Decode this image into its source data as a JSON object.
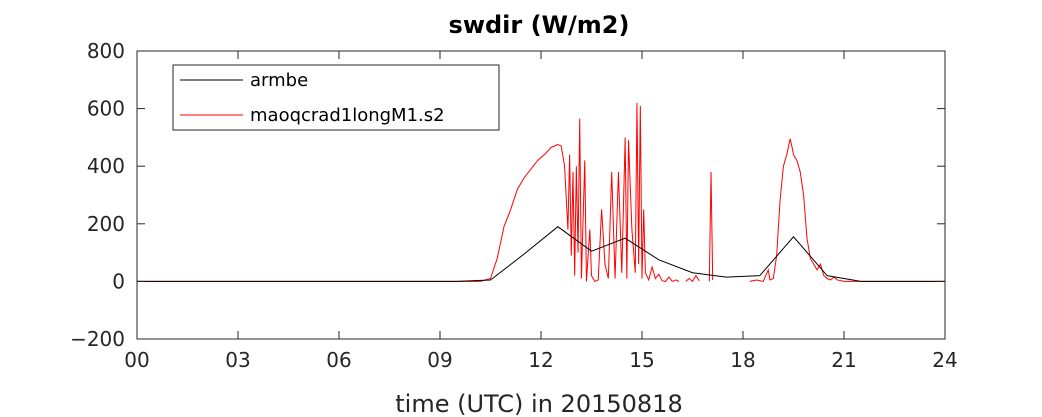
{
  "chart_data": {
    "type": "line",
    "title": "swdir  (W/m2)",
    "xlabel": "time (UTC) in 20150818",
    "ylabel": "",
    "xlim": [
      0,
      24
    ],
    "ylim": [
      -200,
      800
    ],
    "xticks": [
      0,
      3,
      6,
      9,
      12,
      15,
      18,
      21,
      24
    ],
    "xtick_labels": [
      "00",
      "03",
      "06",
      "09",
      "12",
      "15",
      "18",
      "21",
      "24"
    ],
    "yticks": [
      -200,
      0,
      200,
      400,
      600,
      800
    ],
    "ytick_labels": [
      "−200",
      "0",
      "200",
      "400",
      "600",
      "800"
    ],
    "grid": false,
    "legend_position": "top-left",
    "series": [
      {
        "name": "armbe",
        "color": "#000000",
        "points": [
          [
            0,
            0
          ],
          [
            9.5,
            0
          ],
          [
            10.5,
            5
          ],
          [
            11.5,
            95
          ],
          [
            12.5,
            190
          ],
          [
            13.5,
            105
          ],
          [
            14.5,
            150
          ],
          [
            15.5,
            75
          ],
          [
            16.5,
            30
          ],
          [
            17.5,
            15
          ],
          [
            18.5,
            20
          ],
          [
            19.5,
            155
          ],
          [
            20.5,
            20
          ],
          [
            21.5,
            0
          ],
          [
            24,
            0
          ]
        ]
      },
      {
        "name": "maoqcrad1longM1.s2",
        "color": "#ff0000",
        "segments": [
          [
            [
              0,
              0
            ],
            [
              10.2,
              0
            ],
            [
              10.5,
              10
            ],
            [
              10.7,
              80
            ],
            [
              10.9,
              190
            ],
            [
              11.1,
              250
            ],
            [
              11.3,
              320
            ],
            [
              11.5,
              360
            ],
            [
              11.7,
              390
            ],
            [
              11.9,
              420
            ],
            [
              12.1,
              440
            ],
            [
              12.3,
              465
            ],
            [
              12.5,
              475
            ],
            [
              12.6,
              470
            ],
            [
              12.7,
              400
            ],
            [
              12.8,
              180
            ],
            [
              12.85,
              440
            ],
            [
              12.9,
              90
            ],
            [
              12.95,
              380
            ],
            [
              13.0,
              20
            ],
            [
              13.05,
              400
            ],
            [
              13.1,
              100
            ],
            [
              13.15,
              565
            ],
            [
              13.2,
              10
            ],
            [
              13.3,
              420
            ],
            [
              13.35,
              0
            ],
            [
              13.45,
              180
            ],
            [
              13.5,
              20
            ],
            [
              13.6,
              0
            ],
            [
              13.7,
              5
            ],
            [
              13.8,
              250
            ],
            [
              13.9,
              60
            ],
            [
              14.0,
              10
            ],
            [
              14.1,
              380
            ],
            [
              14.2,
              10
            ],
            [
              14.3,
              380
            ],
            [
              14.4,
              30
            ],
            [
              14.5,
              500
            ],
            [
              14.55,
              10
            ],
            [
              14.6,
              490
            ],
            [
              14.7,
              180
            ],
            [
              14.8,
              30
            ],
            [
              14.85,
              620
            ],
            [
              14.9,
              60
            ],
            [
              14.95,
              610
            ],
            [
              15.0,
              10
            ],
            [
              15.05,
              250
            ],
            [
              15.1,
              30
            ],
            [
              15.2,
              5
            ],
            [
              15.3,
              50
            ],
            [
              15.4,
              10
            ],
            [
              15.5,
              25
            ],
            [
              15.6,
              2
            ],
            [
              15.7,
              0
            ],
            [
              15.8,
              15
            ],
            [
              15.9,
              0
            ],
            [
              16.0,
              5
            ],
            [
              16.1,
              0
            ]
          ],
          [
            [
              16.3,
              0
            ],
            [
              16.4,
              10
            ],
            [
              16.5,
              0
            ],
            [
              16.6,
              20
            ],
            [
              16.7,
              2
            ]
          ],
          [
            [
              17.0,
              0
            ],
            [
              17.05,
              380
            ],
            [
              17.1,
              5
            ]
          ],
          [
            [
              18.2,
              0
            ],
            [
              18.4,
              5
            ],
            [
              18.6,
              0
            ],
            [
              18.75,
              40
            ],
            [
              18.8,
              5
            ],
            [
              18.9,
              10
            ],
            [
              19.0,
              90
            ],
            [
              19.1,
              280
            ],
            [
              19.2,
              400
            ],
            [
              19.3,
              440
            ],
            [
              19.4,
              495
            ],
            [
              19.45,
              470
            ],
            [
              19.5,
              440
            ],
            [
              19.6,
              420
            ],
            [
              19.7,
              380
            ],
            [
              19.8,
              300
            ],
            [
              19.9,
              150
            ],
            [
              20.0,
              80
            ],
            [
              20.1,
              60
            ],
            [
              20.2,
              40
            ],
            [
              20.3,
              60
            ],
            [
              20.4,
              20
            ],
            [
              20.5,
              10
            ],
            [
              20.6,
              5
            ],
            [
              20.7,
              15
            ],
            [
              20.8,
              5
            ],
            [
              21.0,
              0
            ],
            [
              24,
              0
            ]
          ]
        ]
      }
    ]
  }
}
